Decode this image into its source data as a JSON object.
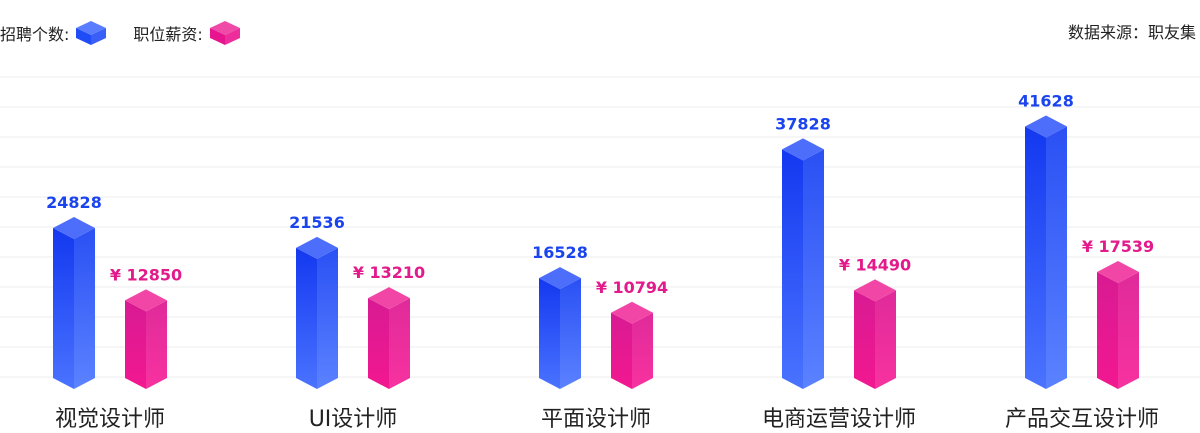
{
  "legend": {
    "count_label": "招聘个数:",
    "salary_label": "职位薪资:"
  },
  "source": "数据来源：职友集",
  "colors": {
    "count": "#1f4cf5",
    "salary": "#e6158f",
    "count_label": "#1a44ee",
    "salary_label": "#e31a8b",
    "grid": "#eeeeee"
  },
  "chart_data": {
    "type": "bar",
    "categories": [
      "视觉设计师",
      "UI设计师",
      "平面设计师",
      "电商运营设计师",
      "产品交互设计师"
    ],
    "series": [
      {
        "name": "招聘个数",
        "values": [
          24828,
          21536,
          16528,
          37828,
          41628
        ],
        "labels": [
          "24828",
          "21536",
          "16528",
          "37828",
          "41628"
        ]
      },
      {
        "name": "职位薪资",
        "values": [
          12850,
          13210,
          10794,
          14490,
          17539
        ],
        "labels": [
          "¥ 12850",
          "¥ 13210",
          "¥ 10794",
          "¥ 14490",
          "¥ 17539"
        ]
      }
    ],
    "grid": true,
    "legend_position": "top-left"
  }
}
